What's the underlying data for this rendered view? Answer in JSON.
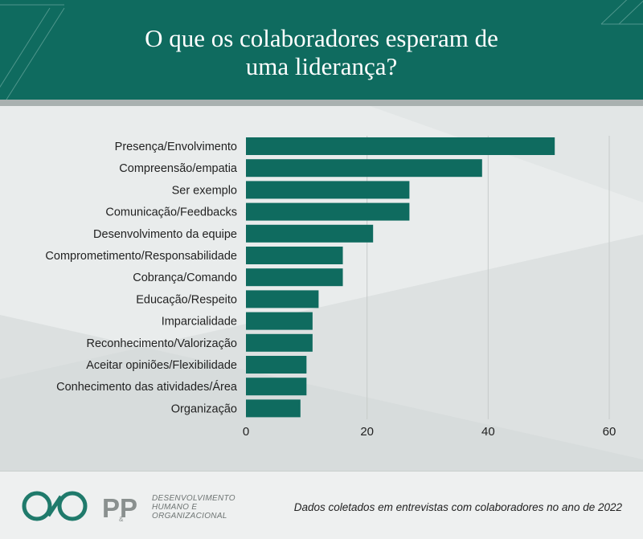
{
  "title_lines": [
    "O que os colaboradores esperam de",
    "uma liderança?"
  ],
  "footnote": "Dados coletados em entrevistas com colaboradores no ano de 2022",
  "logo": {
    "mark_text": "PP",
    "small_text": "&",
    "lines": [
      "DESENVOLVIMENTO",
      "HUMANO E",
      "ORGANIZACIONAL"
    ]
  },
  "colors": {
    "bar": "#0f6b5f",
    "header": "#0f6b5f",
    "grid": "#c6cbca",
    "logo_green": "#1f7a6b",
    "logo_gray": "#8a908f"
  },
  "chart_data": {
    "type": "bar",
    "orientation": "horizontal",
    "categories": [
      "Presença/Envolvimento",
      "Compreensão/empatia",
      "Ser exemplo",
      "Comunicação/Feedbacks",
      "Desenvolvimento da equipe",
      "Comprometimento/Responsabilidade",
      "Cobrança/Comando",
      "Educação/Respeito",
      "Imparcialidade",
      "Reconhecimento/Valorização",
      "Aceitar opiniões/Flexibilidade",
      "Conhecimento das atividades/Área",
      "Organização"
    ],
    "values": [
      51,
      39,
      27,
      27,
      21,
      16,
      16,
      12,
      11,
      11,
      10,
      10,
      9
    ],
    "xlim": [
      0,
      60
    ],
    "xticks": [
      "0",
      "20",
      "40",
      "60"
    ],
    "tick_values": [
      0,
      20,
      40,
      60
    ],
    "grid": true,
    "title": "",
    "xlabel": "",
    "ylabel": ""
  }
}
